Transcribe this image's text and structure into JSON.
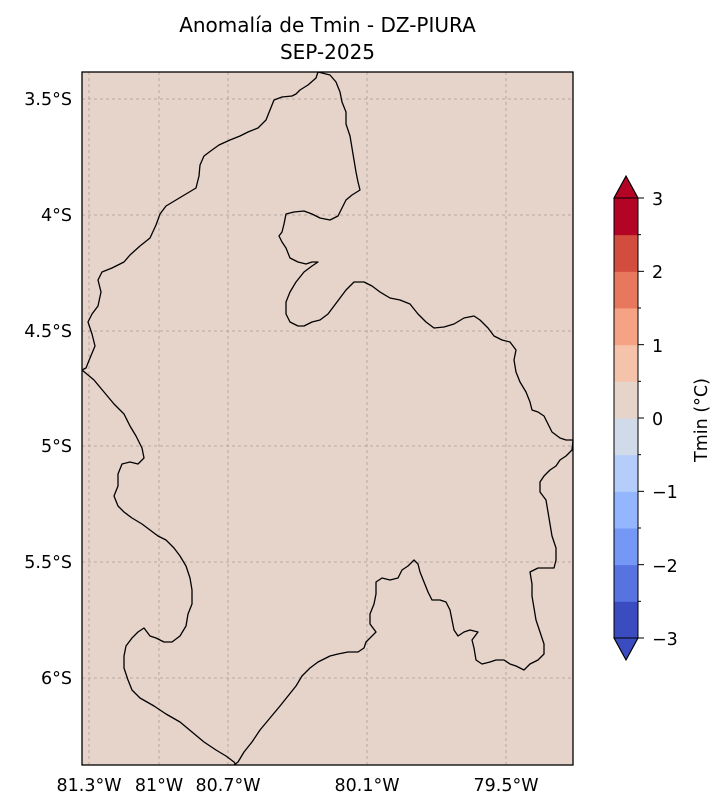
{
  "title": {
    "line1": "Anomalía de Tmin - DZ-PIURA",
    "line2": "SEP-2025"
  },
  "map": {
    "background_color": "#e6d4cb",
    "boundary_color": "#000000",
    "grid": true,
    "grid_color": "#a99b95",
    "lat_ticks": [
      "3.5°S",
      "4°S",
      "4.5°S",
      "5°S",
      "5.5°S",
      "6°S"
    ],
    "lon_ticks": [
      "81.3°W",
      "81°W",
      "80.7°W",
      "80.1°W",
      "79.5°W"
    ]
  },
  "colorbar": {
    "label": "Tmin (°C)",
    "range": [
      -3,
      3
    ],
    "extend": "both",
    "tick_labels": [
      "3",
      "2",
      "1",
      "0",
      "−1",
      "−2",
      "−3"
    ],
    "colors": [
      "#3b4cc0",
      "#5673e0",
      "#7597f6",
      "#94b6ff",
      "#b5cdfa",
      "#d1dae9",
      "#e6d4cb",
      "#f5c2aa",
      "#f6a385",
      "#e8785d",
      "#d24d3e",
      "#b40426"
    ]
  }
}
